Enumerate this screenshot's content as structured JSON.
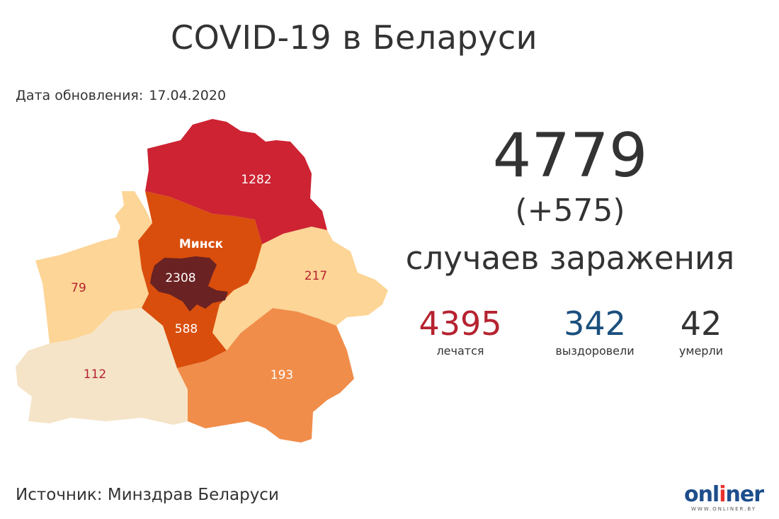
{
  "title": "COVID-19 в Беларуси",
  "update": {
    "label": "Дата обновления:",
    "date": "17.04.2020"
  },
  "map": {
    "regions": [
      {
        "id": "vitebsk",
        "value": "1282",
        "color": "#cd2332"
      },
      {
        "id": "minsk-region",
        "value": "588",
        "color": "#d94e0c"
      },
      {
        "id": "minsk-city",
        "name": "Минск",
        "value": "2308",
        "color": "#6b2222"
      },
      {
        "id": "mogilev",
        "value": "217",
        "color": "#fdd596"
      },
      {
        "id": "gomel",
        "value": "193",
        "color": "#f08d4a"
      },
      {
        "id": "grodno",
        "value": "79",
        "color": "#fdd596"
      },
      {
        "id": "brest",
        "value": "112",
        "color": "#f5e4c8"
      }
    ]
  },
  "totals": {
    "total_cases": "4779",
    "new_cases": "(+575)",
    "cases_label": "случаев заражения",
    "treated": {
      "value": "4395",
      "label": "лечатся",
      "color": "#b5232f"
    },
    "recovered": {
      "value": "342",
      "label": "выздоровели",
      "color": "#1b4f7e"
    },
    "died": {
      "value": "42",
      "label": "умерли",
      "color": "#333333"
    }
  },
  "source": "Источник: Минздрав Беларуси",
  "logo": {
    "brand_main": "onl",
    "brand_accent": "i",
    "brand_end": "ner",
    "site": "WWW.ONLINER.BY"
  }
}
